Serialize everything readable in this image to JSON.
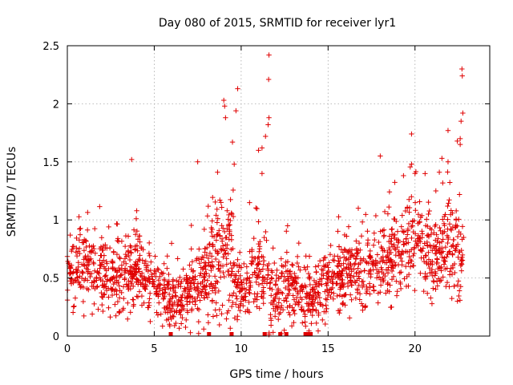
{
  "chart_data": {
    "type": "scatter",
    "title": "Day 080 of 2015, SRMTID for receiver lyr1",
    "xlabel": "GPS time / hours",
    "ylabel": "SRMTID / TECUs",
    "xlim": [
      0,
      24.3
    ],
    "ylim": [
      0,
      2.5
    ],
    "x_ticks": [
      0,
      5,
      10,
      15,
      20
    ],
    "x_tick_labels": [
      "0",
      "5",
      "10",
      "15",
      "20"
    ],
    "y_ticks": [
      0,
      0.5,
      1,
      1.5,
      2,
      2.5
    ],
    "y_tick_labels": [
      "0",
      "0.5",
      "1",
      "1.5",
      "2",
      "2.5"
    ],
    "grid": true,
    "marker": "+",
    "series": [
      {
        "name": "SRMTID",
        "color": "#e00000",
        "envelope": {
          "hours": [
            0,
            1,
            2,
            3,
            4,
            5,
            6,
            7,
            8,
            9,
            10,
            11,
            12,
            13,
            14,
            15,
            16,
            17,
            18,
            19,
            20,
            21,
            22,
            22.8
          ],
          "median": [
            0.55,
            0.6,
            0.5,
            0.5,
            0.6,
            0.45,
            0.3,
            0.35,
            0.5,
            0.75,
            0.4,
            0.55,
            0.35,
            0.4,
            0.3,
            0.45,
            0.55,
            0.6,
            0.65,
            0.7,
            0.9,
            0.65,
            0.8,
            0.7
          ],
          "spread": [
            0.18,
            0.18,
            0.18,
            0.2,
            0.22,
            0.18,
            0.15,
            0.17,
            0.22,
            0.35,
            0.2,
            0.25,
            0.2,
            0.18,
            0.15,
            0.18,
            0.2,
            0.22,
            0.22,
            0.25,
            0.28,
            0.22,
            0.3,
            0.3
          ]
        },
        "outliers": [
          {
            "x": 11.6,
            "y": 2.42
          },
          {
            "x": 11.58,
            "y": 2.21
          },
          {
            "x": 9.8,
            "y": 2.13
          },
          {
            "x": 9.0,
            "y": 2.03
          },
          {
            "x": 9.05,
            "y": 1.98
          },
          {
            "x": 9.7,
            "y": 1.94
          },
          {
            "x": 9.1,
            "y": 1.88
          },
          {
            "x": 11.6,
            "y": 1.88
          },
          {
            "x": 11.55,
            "y": 1.82
          },
          {
            "x": 22.7,
            "y": 2.3
          },
          {
            "x": 22.72,
            "y": 2.24
          },
          {
            "x": 22.75,
            "y": 1.92
          },
          {
            "x": 22.65,
            "y": 1.85
          },
          {
            "x": 21.9,
            "y": 1.77
          },
          {
            "x": 22.6,
            "y": 1.7
          },
          {
            "x": 22.6,
            "y": 1.65
          },
          {
            "x": 19.8,
            "y": 1.74
          },
          {
            "x": 11.4,
            "y": 1.72
          },
          {
            "x": 9.5,
            "y": 1.67
          },
          {
            "x": 11.2,
            "y": 1.62
          },
          {
            "x": 11.0,
            "y": 1.6
          },
          {
            "x": 18.0,
            "y": 1.55
          },
          {
            "x": 3.7,
            "y": 1.52
          },
          {
            "x": 7.5,
            "y": 1.5
          },
          {
            "x": 9.6,
            "y": 1.48
          },
          {
            "x": 21.9,
            "y": 1.5
          },
          {
            "x": 20.0,
            "y": 1.4
          },
          {
            "x": 11.2,
            "y": 1.4
          }
        ],
        "zero_marks": [
          5.95,
          8.15,
          9.45,
          11.35,
          12.25,
          12.6,
          13.7,
          13.8,
          13.9,
          14.0
        ]
      }
    ]
  }
}
